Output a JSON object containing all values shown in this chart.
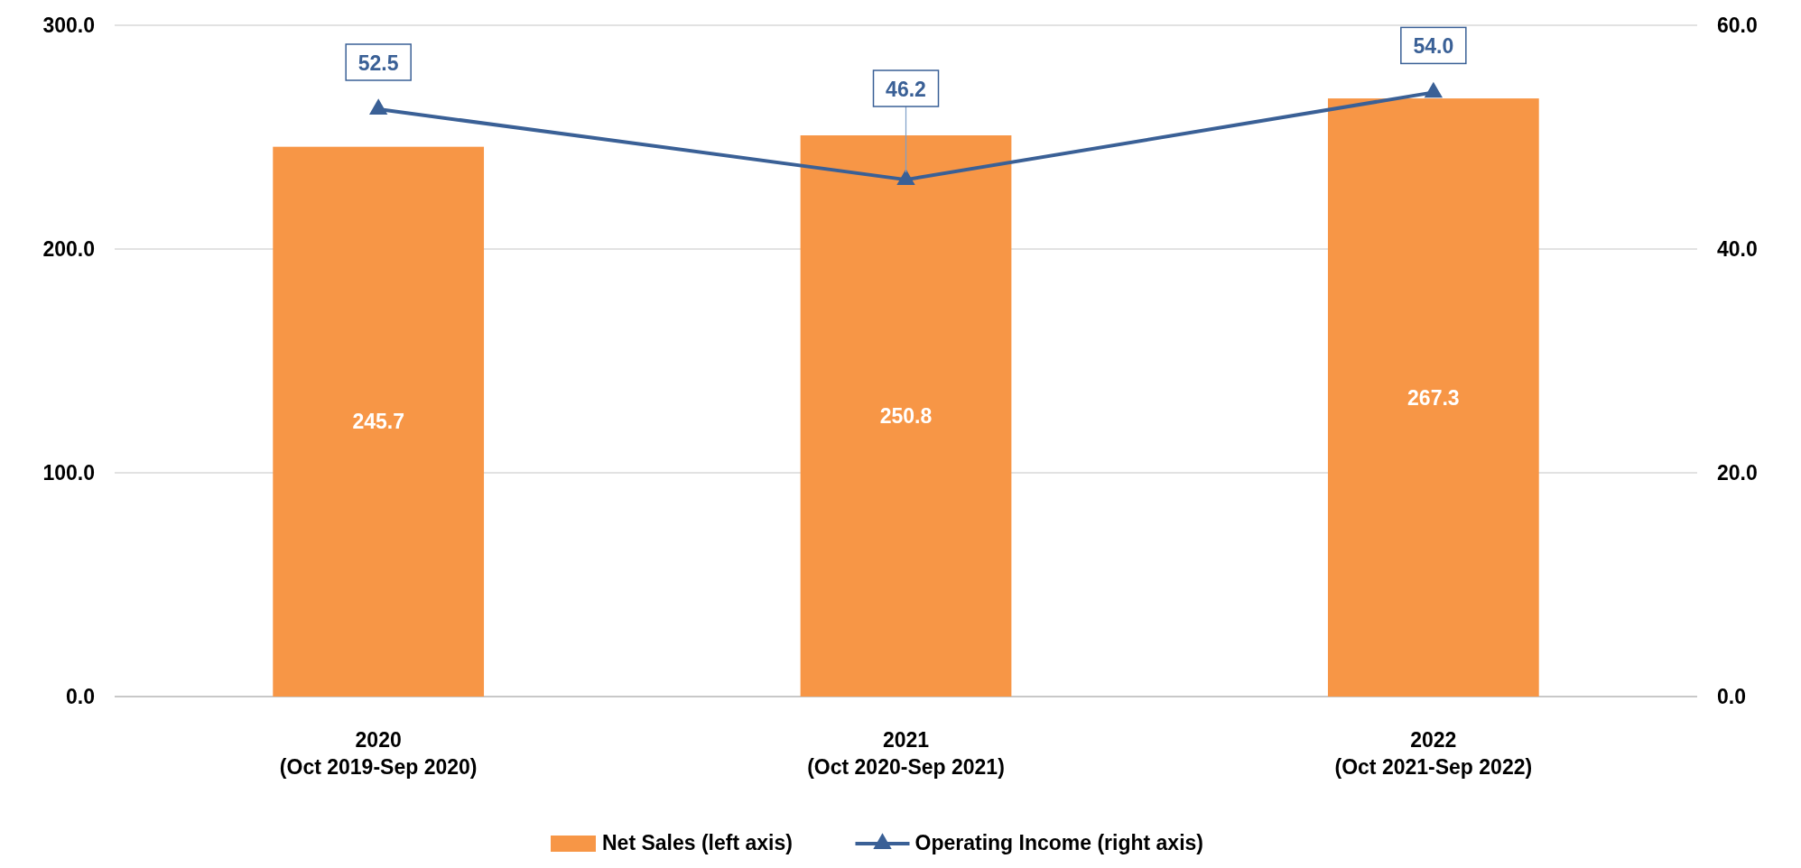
{
  "chart_data": {
    "type": "bar",
    "categories": [
      "2020\n(Oct 2019-Sep 2020)",
      "2021\n(Oct 2020-Sep 2021)",
      "2022\n(Oct 2021-Sep 2022)"
    ],
    "series": [
      {
        "name": "Net Sales (left axis)",
        "color": "#f79646",
        "values": [
          245.7,
          250.8,
          267.3
        ],
        "value_labels": [
          "245.7",
          "250.8",
          "267.3"
        ]
      },
      {
        "type": "line",
        "name": "Operating Income (right axis)",
        "color": "#3a6096",
        "axis": "y2",
        "values": [
          52.5,
          46.2,
          54.0
        ],
        "value_labels": [
          "52.5",
          "46.2",
          "54.0"
        ]
      }
    ],
    "ylim": [
      0,
      300
    ],
    "yticks": [
      {
        "value": 0,
        "label": "0.0"
      },
      {
        "value": 100,
        "label": "100.0"
      },
      {
        "value": 200,
        "label": "200.0"
      },
      {
        "value": 300,
        "label": "300.0"
      }
    ],
    "y2lim": [
      0,
      60
    ],
    "y2ticks": [
      {
        "value": 0,
        "label": "0.0"
      },
      {
        "value": 20,
        "label": "20.0"
      },
      {
        "value": 40,
        "label": "40.0"
      },
      {
        "value": 60,
        "label": "60.0"
      }
    ],
    "grid": "y",
    "legend": "bottom",
    "marker": "triangle",
    "line_style": "solid"
  }
}
